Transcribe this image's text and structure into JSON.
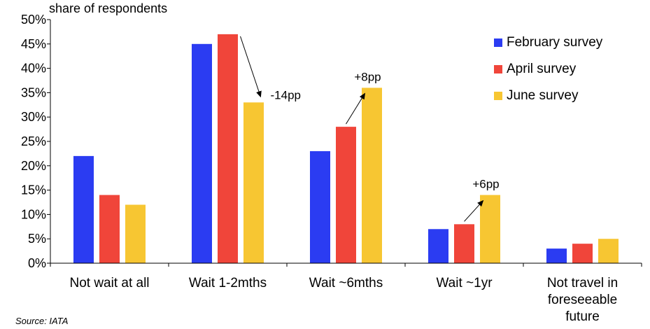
{
  "chart_data": {
    "type": "bar",
    "ylabel": "share of respondents",
    "ylim": [
      0,
      50
    ],
    "yticks": [
      "0%",
      "5%",
      "10%",
      "15%",
      "20%",
      "25%",
      "30%",
      "35%",
      "40%",
      "45%",
      "50%"
    ],
    "categories": [
      [
        "Not wait at all"
      ],
      [
        "Wait 1-2mths"
      ],
      [
        "Wait ~6mths"
      ],
      [
        "Wait ~1yr"
      ],
      [
        "Not travel in",
        "foreseeable",
        "future"
      ]
    ],
    "series": [
      {
        "name": "February survey",
        "color": "#2b3cf2",
        "values": [
          22,
          45,
          23,
          7,
          3
        ]
      },
      {
        "name": "April survey",
        "color": "#f0453a",
        "values": [
          14,
          47,
          28,
          8,
          4
        ]
      },
      {
        "name": "June survey",
        "color": "#f7c632",
        "values": [
          12,
          33,
          36,
          14,
          5
        ]
      }
    ],
    "annotations": [
      {
        "text": "-14pp",
        "category": 1
      },
      {
        "text": "+8pp",
        "category": 2
      },
      {
        "text": "+6pp",
        "category": 3
      }
    ],
    "legend_position": "top-right",
    "grid": false,
    "source": "Source: IATA"
  }
}
